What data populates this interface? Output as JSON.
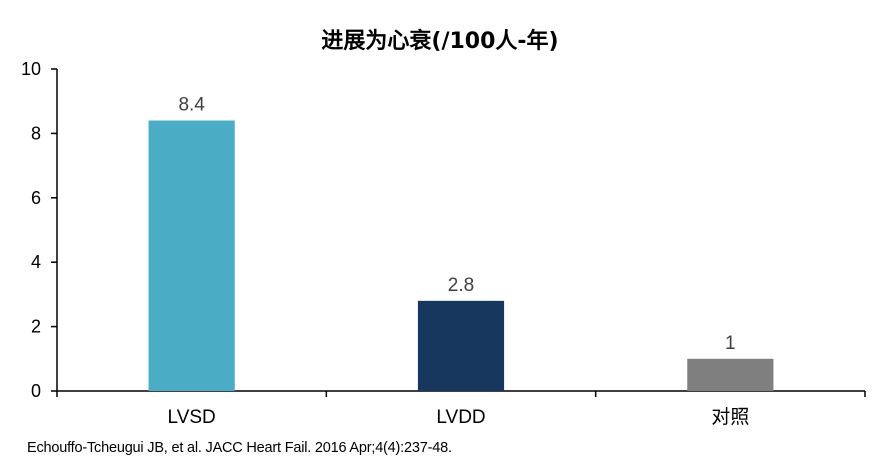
{
  "chart_data": {
    "type": "bar",
    "title": "进展为心衰(/100人-年)",
    "categories": [
      "LVSD",
      "LVDD",
      "对照"
    ],
    "values": [
      8.4,
      2.8,
      1
    ],
    "data_labels": [
      "8.4",
      "2.8",
      "1"
    ],
    "colors": [
      "#4bacc6",
      "#17375e",
      "#7f7f7f"
    ],
    "ylim": [
      0,
      10
    ],
    "yticks": [
      "0",
      "2",
      "4",
      "6",
      "8",
      "10"
    ],
    "grid": false,
    "legend": "none"
  },
  "source_note": "Echouffo-Tcheugui JB, et al. JACC Heart Fail. 2016 Apr;4(4):237-48."
}
